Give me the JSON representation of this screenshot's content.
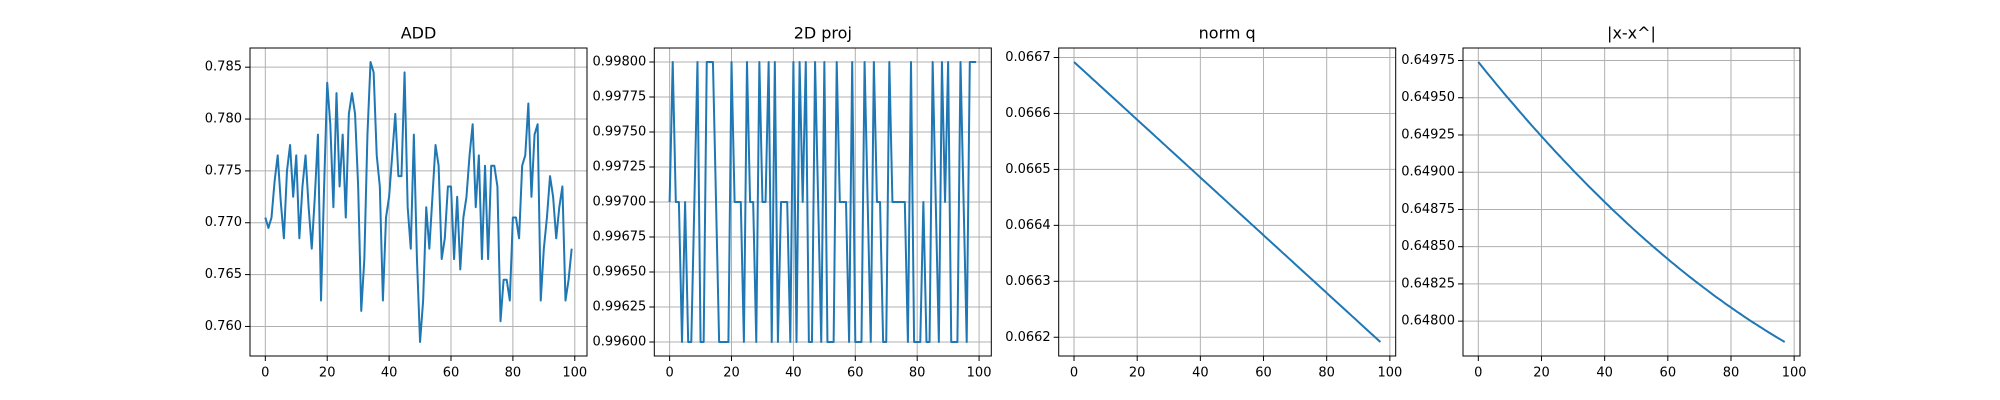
{
  "chart_data": [
    {
      "type": "line",
      "title": "ADD",
      "color": "#1f77b4",
      "grid": true,
      "x": [
        0,
        1,
        2,
        3,
        4,
        5,
        6,
        7,
        8,
        9,
        10,
        11,
        12,
        13,
        14,
        15,
        16,
        17,
        18,
        19,
        20,
        21,
        22,
        23,
        24,
        25,
        26,
        27,
        28,
        29,
        30,
        31,
        32,
        33,
        34,
        35,
        36,
        37,
        38,
        39,
        40,
        41,
        42,
        43,
        44,
        45,
        46,
        47,
        48,
        49,
        50,
        51,
        52,
        53,
        54,
        55,
        56,
        57,
        58,
        59,
        60,
        61,
        62,
        63,
        64,
        65,
        66,
        67,
        68,
        69,
        70,
        71,
        72,
        73,
        74,
        75,
        76,
        77,
        78,
        79,
        80,
        81,
        82,
        83,
        84,
        85,
        86,
        87,
        88,
        89,
        90,
        91,
        92,
        93,
        94,
        95,
        96,
        97,
        98,
        99
      ],
      "values": [
        0.7705,
        0.7695,
        0.7705,
        0.774,
        0.7765,
        0.772,
        0.7685,
        0.775,
        0.7775,
        0.7725,
        0.7765,
        0.7685,
        0.7735,
        0.7765,
        0.7715,
        0.7675,
        0.7725,
        0.7785,
        0.7625,
        0.7735,
        0.7835,
        0.7795,
        0.7715,
        0.7825,
        0.7735,
        0.7785,
        0.7705,
        0.7805,
        0.7825,
        0.7805,
        0.7735,
        0.7615,
        0.7665,
        0.7785,
        0.7855,
        0.7845,
        0.7765,
        0.7735,
        0.7625,
        0.7705,
        0.7725,
        0.7765,
        0.7805,
        0.7745,
        0.7745,
        0.7845,
        0.7715,
        0.7675,
        0.7785,
        0.7665,
        0.7585,
        0.7625,
        0.7715,
        0.7675,
        0.7725,
        0.7775,
        0.7755,
        0.7665,
        0.7685,
        0.7735,
        0.7735,
        0.7665,
        0.7725,
        0.7655,
        0.7705,
        0.7725,
        0.7765,
        0.7795,
        0.7715,
        0.7765,
        0.7665,
        0.7755,
        0.7665,
        0.7755,
        0.7755,
        0.7735,
        0.7605,
        0.7645,
        0.7645,
        0.7625,
        0.7705,
        0.7705,
        0.7685,
        0.7755,
        0.7765,
        0.7815,
        0.7725,
        0.7785,
        0.7795,
        0.7625,
        0.7675,
        0.7705,
        0.7745,
        0.7725,
        0.7685,
        0.7715,
        0.7735,
        0.7625,
        0.7645,
        0.7675
      ],
      "xlim": [
        -4.95,
        103.95
      ],
      "xticks": [
        0,
        20,
        40,
        60,
        80,
        100
      ],
      "ylim": [
        0.75715,
        0.78685
      ],
      "yticks": [
        {
          "value": 0.76,
          "label": "0.760"
        },
        0.765,
        {
          "value": 0.77,
          "label": "0.770"
        },
        0.775,
        {
          "value": 0.78,
          "label": "0.780"
        },
        0.785
      ]
    },
    {
      "type": "line",
      "title": "2D proj",
      "color": "#1f77b4",
      "grid": true,
      "x": [
        0,
        1,
        2,
        3,
        4,
        5,
        6,
        7,
        8,
        9,
        10,
        11,
        12,
        13,
        14,
        15,
        16,
        17,
        18,
        19,
        20,
        21,
        22,
        23,
        24,
        25,
        26,
        27,
        28,
        29,
        30,
        31,
        32,
        33,
        34,
        35,
        36,
        37,
        38,
        39,
        40,
        41,
        42,
        43,
        44,
        45,
        46,
        47,
        48,
        49,
        50,
        51,
        52,
        53,
        54,
        55,
        56,
        57,
        58,
        59,
        60,
        61,
        62,
        63,
        64,
        65,
        66,
        67,
        68,
        69,
        70,
        71,
        72,
        73,
        74,
        75,
        76,
        77,
        78,
        79,
        80,
        81,
        82,
        83,
        84,
        85,
        86,
        87,
        88,
        89,
        90,
        91,
        92,
        93,
        94,
        95,
        96,
        97,
        98,
        99
      ],
      "values": [
        0.997,
        0.998,
        0.997,
        0.997,
        0.996,
        0.997,
        0.996,
        0.996,
        0.997,
        0.998,
        0.996,
        0.996,
        0.998,
        0.998,
        0.998,
        0.997,
        0.996,
        0.996,
        0.996,
        0.996,
        0.998,
        0.997,
        0.997,
        0.997,
        0.996,
        0.998,
        0.997,
        0.997,
        0.996,
        0.998,
        0.997,
        0.997,
        0.998,
        0.996,
        0.998,
        0.996,
        0.997,
        0.997,
        0.997,
        0.996,
        0.998,
        0.996,
        0.998,
        0.997,
        0.998,
        0.996,
        0.996,
        0.998,
        0.997,
        0.996,
        0.998,
        0.996,
        0.996,
        0.996,
        0.998,
        0.997,
        0.997,
        0.997,
        0.996,
        0.998,
        0.996,
        0.996,
        0.996,
        0.998,
        0.997,
        0.996,
        0.998,
        0.997,
        0.997,
        0.996,
        0.996,
        0.998,
        0.997,
        0.997,
        0.997,
        0.997,
        0.997,
        0.996,
        0.998,
        0.996,
        0.996,
        0.996,
        0.997,
        0.996,
        0.996,
        0.998,
        0.997,
        0.996,
        0.998,
        0.997,
        0.998,
        0.996,
        0.996,
        0.996,
        0.998,
        0.997,
        0.996,
        0.998,
        0.998,
        0.998
      ],
      "xlim": [
        -4.95,
        103.95
      ],
      "xticks": [
        0,
        20,
        40,
        60,
        80,
        100
      ],
      "ylim": [
        0.9959,
        0.9981
      ],
      "yticks": [
        {
          "value": 0.996,
          "label": "0.99600"
        },
        0.99625,
        {
          "value": 0.9965,
          "label": "0.99650"
        },
        0.99675,
        {
          "value": 0.997,
          "label": "0.99700"
        },
        0.99725,
        {
          "value": 0.9975,
          "label": "0.99750"
        },
        0.99775,
        {
          "value": 0.998,
          "label": "0.99800"
        }
      ]
    },
    {
      "type": "line",
      "title": "norm q",
      "color": "#1f77b4",
      "grid": true,
      "x": [
        0,
        1,
        2,
        3,
        4,
        5,
        6,
        7,
        8,
        9,
        10,
        11,
        12,
        13,
        14,
        15,
        16,
        17,
        18,
        19,
        20,
        21,
        22,
        23,
        24,
        25,
        26,
        27,
        28,
        29,
        30,
        31,
        32,
        33,
        34,
        35,
        36,
        37,
        38,
        39,
        40,
        41,
        42,
        43,
        44,
        45,
        46,
        47,
        48,
        49,
        50,
        51,
        52,
        53,
        54,
        55,
        56,
        57,
        58,
        59,
        60,
        61,
        62,
        63,
        64,
        65,
        66,
        67,
        68,
        69,
        70,
        71,
        72,
        73,
        74,
        75,
        76,
        77,
        78,
        79,
        80,
        81,
        82,
        83,
        84,
        85,
        86,
        87,
        88,
        89,
        90,
        91,
        92,
        93,
        94,
        95,
        96,
        97
      ],
      "values": [
        0.066692,
        0.0666868,
        0.0666817,
        0.0666765,
        0.0666714,
        0.0666662,
        0.066661,
        0.0666559,
        0.0666507,
        0.0666456,
        0.0666404,
        0.0666352,
        0.0666301,
        0.0666249,
        0.0666198,
        0.0666146,
        0.0666094,
        0.0666043,
        0.0665991,
        0.066594,
        0.0665888,
        0.0665836,
        0.0665785,
        0.0665733,
        0.0665682,
        0.066563,
        0.0665578,
        0.0665527,
        0.0665475,
        0.0665424,
        0.0665372,
        0.066532,
        0.0665269,
        0.0665217,
        0.0665166,
        0.0665114,
        0.0665062,
        0.0665011,
        0.0664959,
        0.0664908,
        0.0664856,
        0.0664804,
        0.0664753,
        0.0664701,
        0.066465,
        0.0664598,
        0.0664546,
        0.0664495,
        0.0664443,
        0.0664392,
        0.066434,
        0.0664288,
        0.0664237,
        0.0664185,
        0.0664134,
        0.0664082,
        0.066403,
        0.0663979,
        0.0663927,
        0.0663876,
        0.0663824,
        0.0663772,
        0.0663721,
        0.0663669,
        0.0663618,
        0.0663566,
        0.0663514,
        0.0663463,
        0.0663411,
        0.066336,
        0.0663308,
        0.0663256,
        0.0663205,
        0.0663153,
        0.0663102,
        0.066305,
        0.0662998,
        0.0662947,
        0.0662895,
        0.0662844,
        0.0662792,
        0.066274,
        0.0662689,
        0.0662637,
        0.0662586,
        0.0662534,
        0.0662482,
        0.0662431,
        0.0662379,
        0.0662328,
        0.0662276,
        0.0662224,
        0.0662173,
        0.0662121,
        0.066207,
        0.0662018,
        0.0661966,
        0.0661915
      ],
      "xlim": [
        -4.85,
        101.85
      ],
      "xticks": [
        0,
        20,
        40,
        60,
        80,
        100
      ],
      "ylim": [
        0.0661665,
        0.066717
      ],
      "yticks": [
        0.0662,
        0.0663,
        0.0664,
        0.0665,
        0.0666,
        0.0667
      ]
    },
    {
      "type": "line",
      "title": "|x-x^|",
      "color": "#1f77b4",
      "grid": true,
      "x": [
        0,
        1,
        2,
        3,
        4,
        5,
        6,
        7,
        8,
        9,
        10,
        11,
        12,
        13,
        14,
        15,
        16,
        17,
        18,
        19,
        20,
        21,
        22,
        23,
        24,
        25,
        26,
        27,
        28,
        29,
        30,
        31,
        32,
        33,
        34,
        35,
        36,
        37,
        38,
        39,
        40,
        41,
        42,
        43,
        44,
        45,
        46,
        47,
        48,
        49,
        50,
        51,
        52,
        53,
        54,
        55,
        56,
        57,
        58,
        59,
        60,
        61,
        62,
        63,
        64,
        65,
        66,
        67,
        68,
        69,
        70,
        71,
        72,
        73,
        74,
        75,
        76,
        77,
        78,
        79,
        80,
        81,
        82,
        83,
        84,
        85,
        86,
        87,
        88,
        89,
        90,
        91,
        92,
        93,
        94,
        95,
        96,
        97
      ],
      "values": [
        0.64974,
        0.649714,
        0.649687,
        0.649661,
        0.649636,
        0.64961,
        0.649584,
        0.649559,
        0.649533,
        0.649508,
        0.649483,
        0.649459,
        0.649434,
        0.649409,
        0.649385,
        0.64936,
        0.649336,
        0.649312,
        0.649288,
        0.649265,
        0.649241,
        0.649218,
        0.649194,
        0.649171,
        0.649148,
        0.649125,
        0.649103,
        0.64908,
        0.649058,
        0.649036,
        0.649013,
        0.648991,
        0.64897,
        0.648948,
        0.648926,
        0.648905,
        0.648884,
        0.648863,
        0.648842,
        0.648821,
        0.6488,
        0.64878,
        0.648759,
        0.648739,
        0.648719,
        0.648699,
        0.648679,
        0.648659,
        0.64864,
        0.64862,
        0.648601,
        0.648582,
        0.648563,
        0.648544,
        0.648526,
        0.648507,
        0.648489,
        0.648471,
        0.648453,
        0.648435,
        0.648417,
        0.648399,
        0.648382,
        0.648364,
        0.648347,
        0.64833,
        0.648313,
        0.648296,
        0.64828,
        0.648263,
        0.648247,
        0.648231,
        0.648215,
        0.648199,
        0.648183,
        0.648167,
        0.648152,
        0.648137,
        0.648121,
        0.648106,
        0.648092,
        0.648077,
        0.648062,
        0.648048,
        0.648033,
        0.648019,
        0.648005,
        0.647991,
        0.647978,
        0.647964,
        0.647951,
        0.647937,
        0.647924,
        0.647911,
        0.647898,
        0.647885,
        0.647873,
        0.64786
      ],
      "xlim": [
        -4.85,
        101.85
      ],
      "xticks": [
        0,
        20,
        40,
        60,
        80,
        100
      ],
      "ylim": [
        0.647766,
        0.649834
      ],
      "yticks": [
        {
          "value": 0.648,
          "label": "0.64800"
        },
        0.64825,
        {
          "value": 0.6485,
          "label": "0.64850"
        },
        0.64875,
        {
          "value": 0.649,
          "label": "0.64900"
        },
        0.64925,
        {
          "value": 0.6495,
          "label": "0.64950"
        },
        0.64975
      ]
    }
  ]
}
